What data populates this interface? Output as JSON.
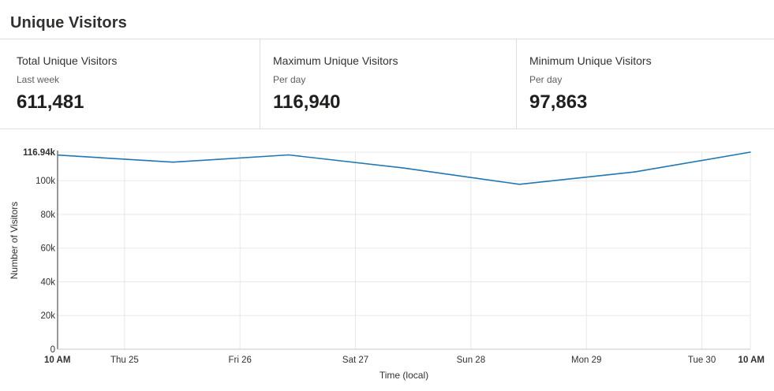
{
  "header": {
    "title": "Unique Visitors"
  },
  "cards": [
    {
      "label": "Total Unique Visitors",
      "sublabel": "Last week",
      "value": "611,481"
    },
    {
      "label": "Maximum Unique Visitors",
      "sublabel": "Per day",
      "value": "116,940"
    },
    {
      "label": "Minimum Unique Visitors",
      "sublabel": "Per day",
      "value": "97,863"
    }
  ],
  "chart_data": {
    "type": "line",
    "title": "",
    "xlabel": "Time (local)",
    "ylabel": "Number of Visitors",
    "ylim": [
      0,
      116940
    ],
    "yticks": [
      {
        "value": 0,
        "label": "0"
      },
      {
        "value": 20000,
        "label": "20k"
      },
      {
        "value": 40000,
        "label": "40k"
      },
      {
        "value": 60000,
        "label": "60k"
      },
      {
        "value": 80000,
        "label": "80k"
      },
      {
        "value": 100000,
        "label": "100k"
      },
      {
        "value": 116940,
        "label": "116.94k",
        "bold": true
      }
    ],
    "xlim": [
      0,
      6
    ],
    "xticks": [
      {
        "value": 0,
        "label": "10 AM",
        "bold": true
      },
      {
        "value": 0.58,
        "label": "Thu 25"
      },
      {
        "value": 1.58,
        "label": "Fri 26"
      },
      {
        "value": 2.58,
        "label": "Sat 27"
      },
      {
        "value": 3.58,
        "label": "Sun 28"
      },
      {
        "value": 4.58,
        "label": "Mon 29"
      },
      {
        "value": 5.58,
        "label": "Tue 30"
      },
      {
        "value": 6,
        "label": "10 AM",
        "bold": true
      }
    ],
    "series": [
      {
        "name": "Unique Visitors",
        "color": "#1f77b4",
        "x": [
          0,
          1,
          2,
          3,
          4,
          5,
          6
        ],
        "values": [
          115200,
          111000,
          115300,
          107500,
          97863,
          105200,
          116940
        ]
      }
    ]
  }
}
